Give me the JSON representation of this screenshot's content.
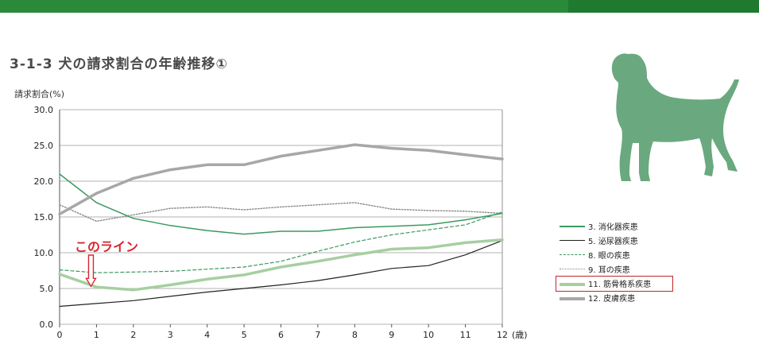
{
  "colors": {
    "header_bar": "#2b8a3a",
    "dog_silhouette": "#6aa97f",
    "annotation": "#d8262e"
  },
  "title": "3-1-3  犬の請求割合の年齢推移①",
  "annotation": {
    "text": "このライン",
    "arrow": "down-arrow-icon"
  },
  "illustration": "dog-silhouette-icon",
  "chart_data": {
    "type": "line",
    "ylabel": "請求割合(%)",
    "xlabel": "(歳)",
    "x": [
      0,
      1,
      2,
      3,
      4,
      5,
      6,
      7,
      8,
      9,
      10,
      11,
      12
    ],
    "x_tick_labels": [
      "0",
      "1",
      "2",
      "3",
      "4",
      "5",
      "6",
      "7",
      "8",
      "9",
      "10",
      "11",
      "12"
    ],
    "ylim": [
      0,
      30
    ],
    "y_ticks": [
      "0.0",
      "5.0",
      "10.0",
      "15.0",
      "20.0",
      "25.0",
      "30.0"
    ],
    "grid": true,
    "legend_position": "right",
    "series": [
      {
        "name": "3. 消化器疾患",
        "color": "#3a9a5e",
        "dash": "solid",
        "width": 1.5,
        "highlighted": false,
        "values": [
          21.0,
          17.0,
          14.8,
          13.8,
          13.1,
          12.6,
          13.0,
          13.0,
          13.5,
          13.7,
          13.9,
          14.6,
          15.5
        ]
      },
      {
        "name": "5. 泌尿器疾患",
        "color": "#222222",
        "dash": "solid",
        "width": 1.2,
        "highlighted": false,
        "values": [
          2.5,
          2.9,
          3.3,
          3.9,
          4.5,
          5.0,
          5.5,
          6.1,
          6.9,
          7.8,
          8.2,
          9.7,
          11.7
        ]
      },
      {
        "name": "8. 眼の疾患",
        "color": "#3a9a5e",
        "dash": "dashed",
        "width": 1.2,
        "highlighted": false,
        "values": [
          7.6,
          7.2,
          7.3,
          7.4,
          7.7,
          8.0,
          8.8,
          10.2,
          11.5,
          12.5,
          13.2,
          13.9,
          15.7
        ]
      },
      {
        "name": "9. 耳の疾患",
        "color": "#888888",
        "dash": "dotted",
        "width": 1.4,
        "highlighted": false,
        "values": [
          16.7,
          14.4,
          15.3,
          16.2,
          16.4,
          16.0,
          16.4,
          16.7,
          17.0,
          16.1,
          15.9,
          15.8,
          15.5
        ]
      },
      {
        "name": "11. 筋骨格系疾患",
        "color": "#a6cfa0",
        "dash": "solid",
        "width": 3.5,
        "highlighted": true,
        "values": [
          7.0,
          5.2,
          4.8,
          5.5,
          6.3,
          6.9,
          8.0,
          8.8,
          9.7,
          10.5,
          10.7,
          11.4,
          11.8
        ]
      },
      {
        "name": "12. 皮膚疾患",
        "color": "#a7a7a7",
        "dash": "solid",
        "width": 3.5,
        "highlighted": false,
        "values": [
          15.4,
          18.3,
          20.4,
          21.6,
          22.3,
          22.3,
          23.5,
          24.3,
          25.1,
          24.6,
          24.3,
          23.7,
          23.1
        ]
      }
    ]
  }
}
